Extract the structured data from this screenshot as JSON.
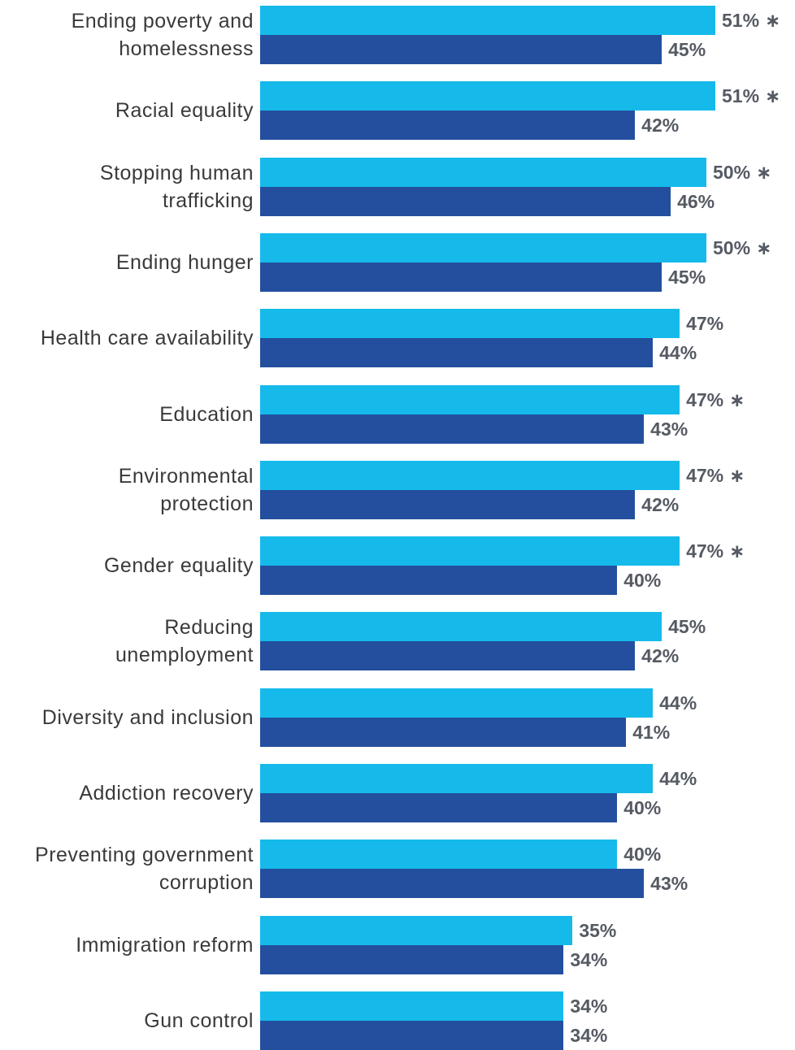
{
  "chart_data": {
    "type": "bar",
    "orientation": "horizontal",
    "categories": [
      [
        "Ending poverty and",
        "homelessness"
      ],
      [
        "Racial equality"
      ],
      [
        "Stopping human",
        "trafficking"
      ],
      [
        "Ending hunger"
      ],
      [
        "Health care availability"
      ],
      [
        "Education"
      ],
      [
        "Environmental",
        "protection"
      ],
      [
        "Gender equality"
      ],
      [
        "Reducing",
        "unemployment"
      ],
      [
        "Diversity and inclusion"
      ],
      [
        "Addiction recovery"
      ],
      [
        "Preventing government",
        "corruption"
      ],
      [
        "Immigration reform"
      ],
      [
        "Gun control"
      ]
    ],
    "series": [
      {
        "color": "#15baea",
        "values": [
          51,
          51,
          50,
          50,
          47,
          47,
          47,
          47,
          45,
          44,
          44,
          40,
          35,
          34
        ],
        "labels": [
          "51%",
          "51%",
          "50%",
          "50%",
          "47%",
          "47%",
          "47%",
          "47%",
          "45%",
          "44%",
          "44%",
          "40%",
          "35%",
          "34%"
        ],
        "marker": "∗",
        "marked": [
          true,
          true,
          true,
          true,
          false,
          true,
          true,
          true,
          false,
          false,
          false,
          false,
          false,
          false
        ]
      },
      {
        "color": "#234f9e",
        "values": [
          45,
          42,
          46,
          45,
          44,
          43,
          42,
          40,
          42,
          41,
          40,
          43,
          34,
          34
        ],
        "labels": [
          "45%",
          "42%",
          "46%",
          "45%",
          "44%",
          "43%",
          "42%",
          "40%",
          "42%",
          "41%",
          "40%",
          "43%",
          "34%",
          "34%"
        ]
      }
    ],
    "title": "",
    "xlabel": "",
    "ylabel": "",
    "xlim": [
      0,
      51
    ],
    "grid": false,
    "legend": "none"
  }
}
